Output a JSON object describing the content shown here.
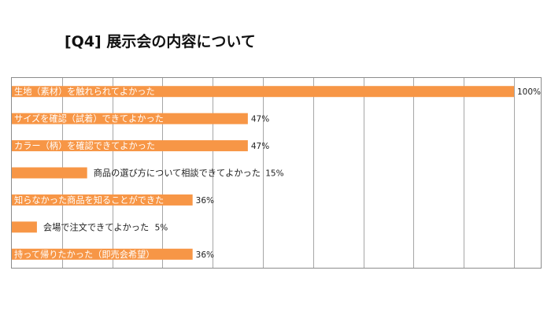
{
  "title": "[Q4] 展示会の内容について",
  "chart_data": {
    "type": "bar",
    "orientation": "horizontal",
    "title": "[Q4] 展示会の内容について",
    "categories": [
      "生地（素材）を触れられてよかった",
      "サイズを確認（試着）できてよかった",
      "カラー（柄）を確認できてよかった",
      "商品の選び方について相談できてよかった",
      "知らなかった商品を知ることができた",
      "会場で注文できてよかった",
      "持って帰りたかった（即売会希望）"
    ],
    "values": [
      100,
      47,
      47,
      15,
      36,
      5,
      36
    ],
    "value_labels": [
      "100%",
      "47%",
      "47%",
      "15%",
      "36%",
      "5%",
      "36%"
    ],
    "xlim": [
      0,
      100
    ],
    "grid": true,
    "legend": "none",
    "colors": {
      "bar": "#f79646",
      "bar_label": "#ffffff",
      "outside_label": "#222222",
      "grid": "#a6a6a6",
      "frame": "#8c8c8c"
    }
  }
}
